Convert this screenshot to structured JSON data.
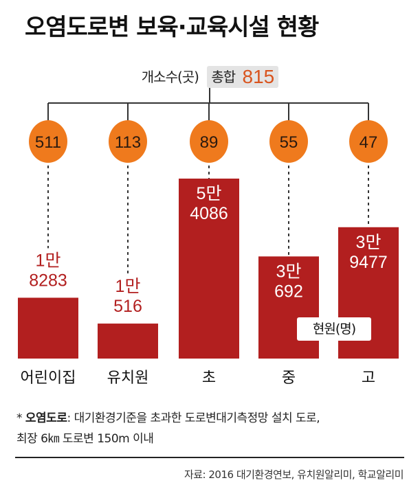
{
  "title": "오염도로변 보육·교육시설 현황",
  "unit_count": "개소수(곳)",
  "total_label": "총합",
  "total_value": "815",
  "enrollment_unit": "현원(명)",
  "colors": {
    "bar": "#b21f1f",
    "circle": "#ef7a1d",
    "count_text": "#b21f1f",
    "total_text": "#d9541e"
  },
  "chart_data": {
    "type": "bar",
    "categories": [
      "어린이집",
      "유치원",
      "초",
      "중",
      "고"
    ],
    "series": [
      {
        "name": "개소수(곳)",
        "values": [
          511,
          113,
          89,
          55,
          47
        ]
      },
      {
        "name": "현원(명)",
        "values": [
          18283,
          10516,
          54086,
          30692,
          39477
        ]
      }
    ],
    "facility_labels": [
      "511",
      "113",
      "89",
      "55",
      "47"
    ],
    "enrollment_labels": [
      [
        "1만",
        "8283"
      ],
      [
        "1만",
        "516"
      ],
      [
        "5만",
        "4086"
      ],
      [
        "3만",
        "692"
      ],
      [
        "3만",
        "9477"
      ]
    ],
    "ylim": [
      0,
      54086
    ]
  },
  "footnote": {
    "marker": "*",
    "term": "오염도로",
    "line1": ": 대기환경기준을 초과한 도로변대기측정망 설치 도로,",
    "line2": "최장 6㎞ 도로변 150m 이내"
  },
  "source": "자료: 2016 대기환경연보, 유치원알리미, 학교알리미"
}
